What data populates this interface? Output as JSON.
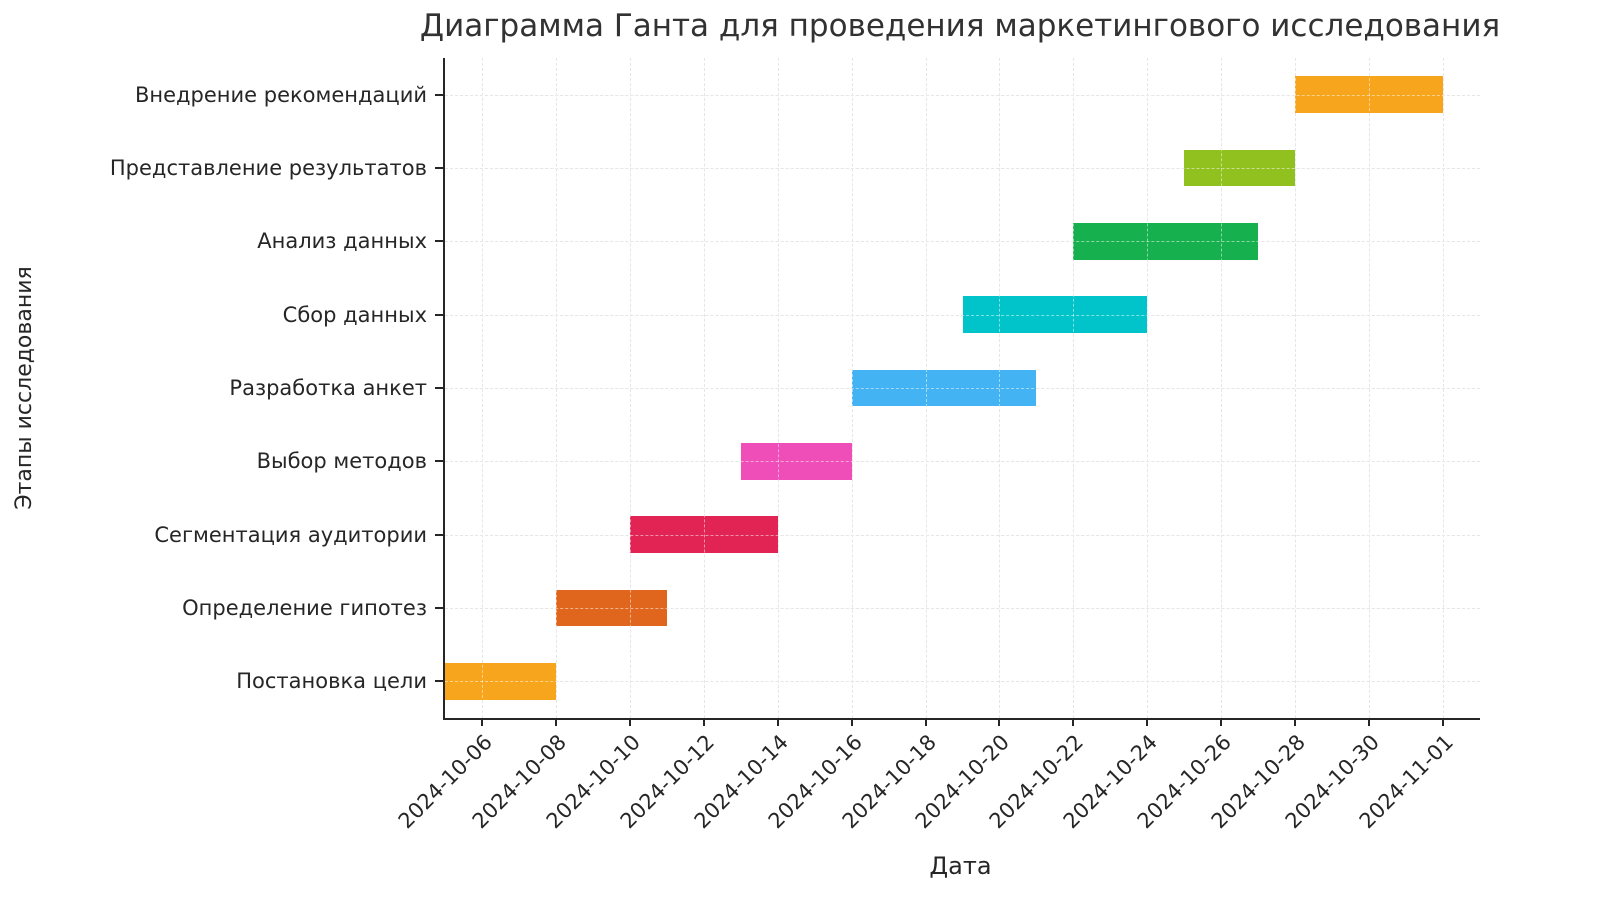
{
  "chart_data": {
    "type": "bar",
    "subtype": "gantt-horizontal",
    "title": "Диаграмма Ганта для проведения маркетингового исследования",
    "xlabel": "Дата",
    "ylabel": "Этапы исследования",
    "grid": true,
    "grid_style": "dashed",
    "grid_color": "#cdcdcd",
    "axis_color": "#262626",
    "x_domain": [
      "2024-10-05",
      "2024-11-02"
    ],
    "x_ticks": [
      "2024-10-06",
      "2024-10-08",
      "2024-10-10",
      "2024-10-12",
      "2024-10-14",
      "2024-10-16",
      "2024-10-18",
      "2024-10-20",
      "2024-10-22",
      "2024-10-24",
      "2024-10-26",
      "2024-10-28",
      "2024-10-30",
      "2024-11-01"
    ],
    "tasks": [
      {
        "name": "Внедрение рекомендаций",
        "start": "2024-10-28",
        "end": "2024-11-01",
        "color": "#F7A51C"
      },
      {
        "name": "Представление результатов",
        "start": "2024-10-25",
        "end": "2024-10-28",
        "color": "#90C11E"
      },
      {
        "name": "Анализ данных",
        "start": "2024-10-22",
        "end": "2024-10-27",
        "color": "#16B04E"
      },
      {
        "name": "Сбор данных",
        "start": "2024-10-19",
        "end": "2024-10-24",
        "color": "#00C4C9"
      },
      {
        "name": "Разработка анкет",
        "start": "2024-10-16",
        "end": "2024-10-21",
        "color": "#43B3F3"
      },
      {
        "name": "Выбор методов",
        "start": "2024-10-13",
        "end": "2024-10-16",
        "color": "#EF4EB8"
      },
      {
        "name": "Сегментация аудитории",
        "start": "2024-10-10",
        "end": "2024-10-14",
        "color": "#E22455"
      },
      {
        "name": "Определение гипотез",
        "start": "2024-10-08",
        "end": "2024-10-11",
        "color": "#E0661E"
      },
      {
        "name": "Постановка цели",
        "start": "2024-10-05",
        "end": "2024-10-08",
        "color": "#F7A51C"
      }
    ]
  }
}
